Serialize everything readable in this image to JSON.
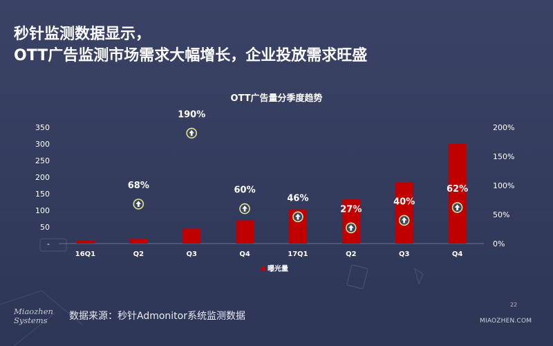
{
  "slide": {
    "title_line1": "秒针监测数据显示，",
    "title_line2": "OTT广告监测市场需求大幅增长，企业投放需求旺盛",
    "source": "数据来源：秒针Admonitor系统监测数据",
    "page_number": "22",
    "site": "MIAOZHEN.COM",
    "logo_line1": "Miaozhen",
    "logo_line2": "Systems"
  },
  "colors": {
    "background": "#363e60",
    "bar": "#c00000",
    "marker_ring": "#e2e48a",
    "marker_fill": "#3a4364",
    "text": "#ffffff"
  },
  "chart_data": {
    "type": "bar",
    "title": "OTT广告量分季度趋势",
    "categories": [
      "16Q1",
      "Q2",
      "Q3",
      "Q4",
      "17Q1",
      "Q2",
      "Q3",
      "Q4"
    ],
    "series": [
      {
        "name": "曝光量",
        "axis": "left",
        "values": [
          8,
          15,
          45,
          70,
          103,
          133,
          185,
          300
        ]
      }
    ],
    "growth_markers": {
      "axis": "right",
      "values": [
        null,
        68,
        190,
        60,
        46,
        27,
        40,
        62
      ],
      "labels": [
        "",
        "68%",
        "190%",
        "60%",
        "46%",
        "27%",
        "40%",
        "62%"
      ],
      "icon": "up-arrow-icon"
    },
    "y_left": {
      "ticks": [
        "-",
        "50",
        "100",
        "150",
        "200",
        "250",
        "300",
        "350"
      ],
      "ylim": [
        0,
        350
      ]
    },
    "y_right": {
      "ticks": [
        "0%",
        "50%",
        "100%",
        "150%",
        "200%"
      ],
      "ylim": [
        0,
        200
      ]
    },
    "legend": {
      "position": "bottom",
      "label": "曝光量"
    },
    "grid": false
  }
}
